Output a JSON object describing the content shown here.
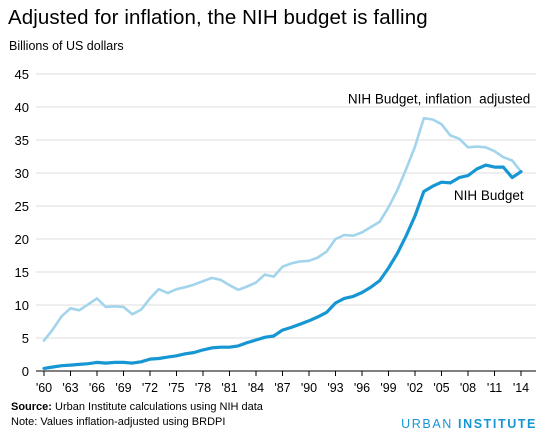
{
  "header": {
    "title": "Adjusted for inflation, the NIH budget is falling",
    "ylabel": "Billions of US dollars"
  },
  "footer": {
    "source_label": "Source:",
    "source_text": " Urban Institute calculations using NIH data",
    "note_text": "Note: Values inflation-adjusted using BRDPI"
  },
  "brand": {
    "part1": "URBAN ",
    "part2": "INSTITUTE"
  },
  "colors": {
    "nominal": "#1696d2",
    "adjusted": "#a2d4ec",
    "brand": "#1696d2",
    "grid": "#dedede"
  },
  "chart_data": {
    "type": "line",
    "title": "Adjusted for inflation, the NIH budget is falling",
    "xlabel": "",
    "ylabel": "Billions of US dollars",
    "ylim": [
      0,
      45
    ],
    "yticks": [
      0,
      5,
      10,
      15,
      20,
      25,
      30,
      35,
      40,
      45
    ],
    "xticks": [
      {
        "value": 1960,
        "label": "'60"
      },
      {
        "value": 1963,
        "label": "'63"
      },
      {
        "value": 1966,
        "label": "'66"
      },
      {
        "value": 1969,
        "label": "'69"
      },
      {
        "value": 1972,
        "label": "'72"
      },
      {
        "value": 1975,
        "label": "'75"
      },
      {
        "value": 1978,
        "label": "'78"
      },
      {
        "value": 1981,
        "label": "'81"
      },
      {
        "value": 1984,
        "label": "'84"
      },
      {
        "value": 1987,
        "label": "'87"
      },
      {
        "value": 1990,
        "label": "'90"
      },
      {
        "value": 1993,
        "label": "'93"
      },
      {
        "value": 1996,
        "label": "'96"
      },
      {
        "value": 1999,
        "label": "'99"
      },
      {
        "value": 2002,
        "label": "'02"
      },
      {
        "value": 2005,
        "label": "'05"
      },
      {
        "value": 2008,
        "label": "'08"
      },
      {
        "value": 2011,
        "label": "'11"
      },
      {
        "value": 2014,
        "label": "'14"
      }
    ],
    "grid": true,
    "x": [
      1960,
      1961,
      1962,
      1963,
      1964,
      1965,
      1966,
      1967,
      1968,
      1969,
      1970,
      1971,
      1972,
      1973,
      1974,
      1975,
      1976,
      1977,
      1978,
      1979,
      1980,
      1981,
      1982,
      1983,
      1984,
      1985,
      1986,
      1987,
      1988,
      1989,
      1990,
      1991,
      1992,
      1993,
      1994,
      1995,
      1996,
      1997,
      1998,
      1999,
      2000,
      2001,
      2002,
      2003,
      2004,
      2005,
      2006,
      2007,
      2008,
      2009,
      2010,
      2011,
      2012,
      2013,
      2014
    ],
    "series": [
      {
        "name": "NIH Budget, inflation  adjusted",
        "values": [
          4.6,
          6.3,
          8.3,
          9.5,
          9.2,
          10.1,
          11.0,
          9.7,
          9.8,
          9.7,
          8.6,
          9.3,
          11.0,
          12.4,
          11.8,
          12.4,
          12.7,
          13.1,
          13.6,
          14.1,
          13.8,
          13.0,
          12.3,
          12.8,
          13.4,
          14.6,
          14.3,
          15.8,
          16.3,
          16.6,
          16.7,
          17.2,
          18.1,
          20.0,
          20.6,
          20.5,
          21.0,
          21.8,
          22.6,
          24.8,
          27.4,
          30.6,
          34.0,
          38.3,
          38.1,
          37.4,
          35.7,
          35.2,
          33.9,
          34.0,
          33.9,
          33.3,
          32.4,
          31.9,
          30.2
        ],
        "label_at": {
          "x": 1994.4,
          "y": 40.5
        },
        "label_text": "NIH Budget, inflation  adjusted"
      },
      {
        "name": "NIH Budget",
        "values": [
          0.4,
          0.6,
          0.8,
          0.9,
          1.0,
          1.1,
          1.3,
          1.2,
          1.3,
          1.3,
          1.2,
          1.4,
          1.8,
          1.9,
          2.1,
          2.3,
          2.6,
          2.8,
          3.2,
          3.5,
          3.6,
          3.6,
          3.8,
          4.3,
          4.7,
          5.1,
          5.3,
          6.2,
          6.6,
          7.1,
          7.6,
          8.2,
          8.9,
          10.3,
          11.0,
          11.3,
          11.9,
          12.7,
          13.7,
          15.6,
          17.8,
          20.5,
          23.5,
          27.2,
          28.0,
          28.6,
          28.5,
          29.3,
          29.6,
          30.6,
          31.2,
          30.9,
          30.9,
          29.3,
          30.2
        ],
        "label_at": {
          "x": 2006.4,
          "y": 25.9
        },
        "label_text": "NIH Budget"
      }
    ]
  }
}
